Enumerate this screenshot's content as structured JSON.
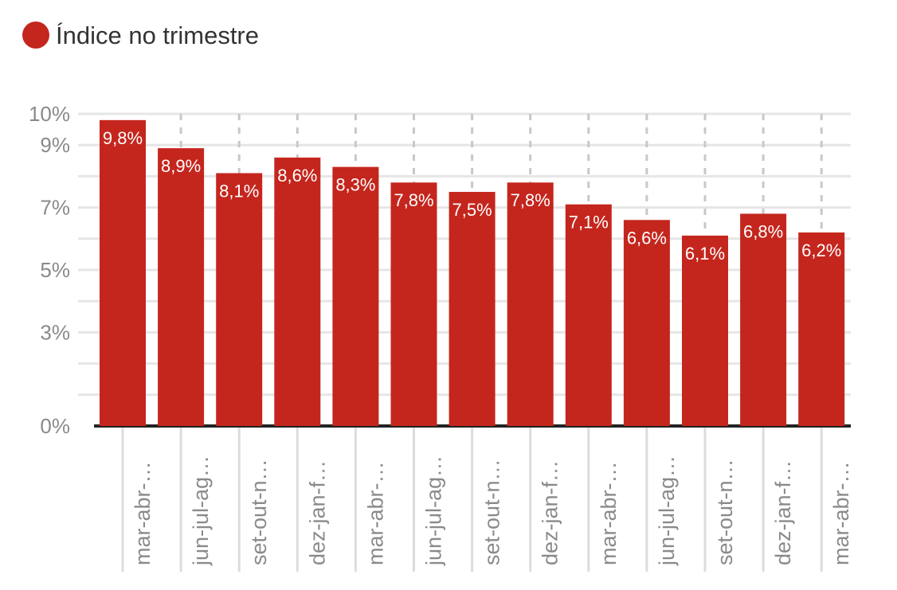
{
  "legend": {
    "label": "Índice no trimestre",
    "color": "#c4261d"
  },
  "chart_data": {
    "type": "bar",
    "categories": [
      "mar-abr-…",
      "jun-jul-ag…",
      "set-out-n…",
      "dez-jan-f…",
      "mar-abr-…",
      "jun-jul-ag…",
      "set-out-n…",
      "dez-jan-f…",
      "mar-abr-…",
      "jun-jul-ag…",
      "set-out-n…",
      "dez-jan-f…",
      "mar-abr-…"
    ],
    "series": [
      {
        "name": "Índice no trimestre",
        "color": "#c4261d",
        "values": [
          9.8,
          8.9,
          8.1,
          8.6,
          8.3,
          7.8,
          7.5,
          7.8,
          7.1,
          6.6,
          6.1,
          6.8,
          6.2
        ],
        "data_labels": [
          "9,8%",
          "8,9%",
          "8,1%",
          "8,6%",
          "8,3%",
          "7,8%",
          "7,5%",
          "7,8%",
          "7,1%",
          "6,6%",
          "6,1%",
          "6,8%",
          "6,2%"
        ]
      }
    ],
    "ylim": [
      0,
      10
    ],
    "yticks": [
      {
        "value": 10,
        "label": "10%"
      },
      {
        "value": 9,
        "label": "9%"
      },
      {
        "value": 7,
        "label": "7%"
      },
      {
        "value": 5,
        "label": "5%"
      },
      {
        "value": 3,
        "label": "3%"
      },
      {
        "value": 0,
        "label": "0%"
      }
    ],
    "minor_grid": [
      1,
      2,
      4,
      6,
      8
    ],
    "grid": true,
    "legend_position": "top-left",
    "title": "",
    "xlabel": "",
    "ylabel": ""
  }
}
